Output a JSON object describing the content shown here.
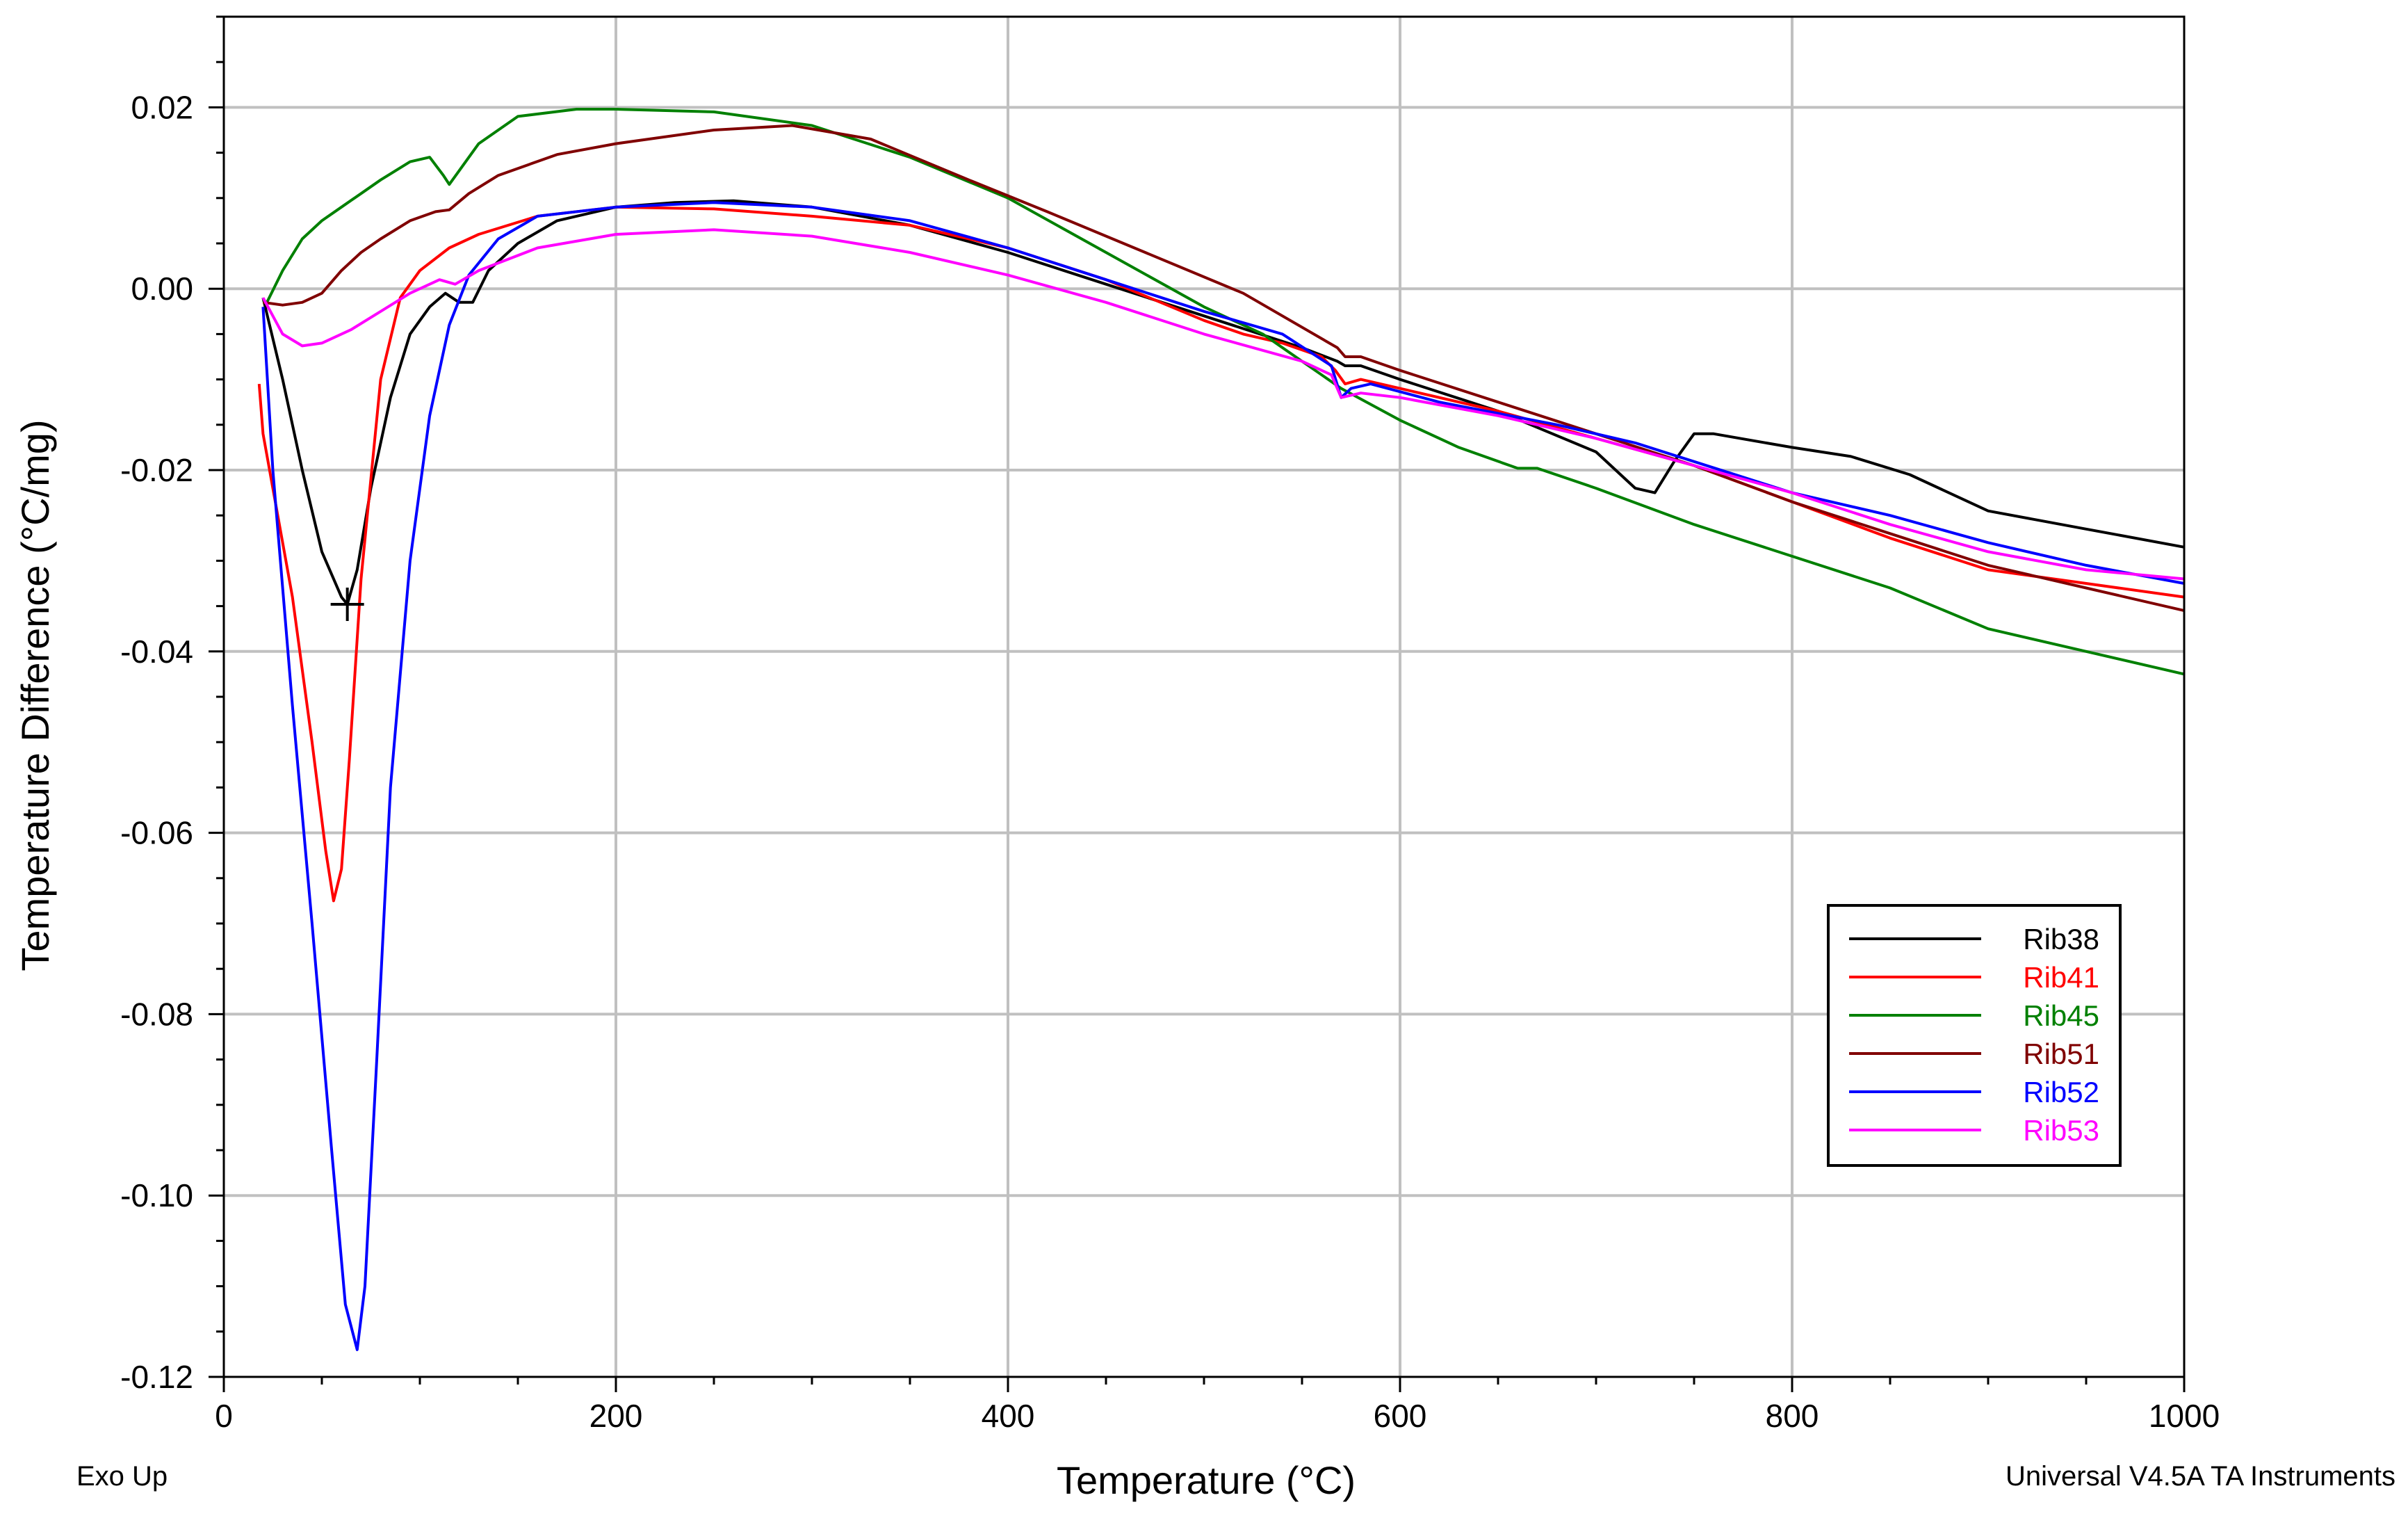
{
  "chart_data": {
    "type": "line",
    "xlabel": "Temperature (°C)",
    "ylabel": "Temperature Difference (°C/mg)",
    "xlim": [
      0,
      1000
    ],
    "ylim": [
      -0.12,
      0.03
    ],
    "x_ticks": [
      0,
      200,
      400,
      600,
      800,
      1000
    ],
    "y_ticks": [
      0.02,
      0.0,
      -0.02,
      -0.04,
      -0.06,
      -0.08,
      -0.1,
      -0.12
    ],
    "x_tick_labels": [
      "0",
      "200",
      "400",
      "600",
      "800",
      "1000"
    ],
    "y_tick_labels": [
      "0.02",
      "0.00",
      "-0.02",
      "-0.04",
      "-0.06",
      "-0.08",
      "-0.10",
      "-0.12"
    ],
    "grid": true,
    "legend_position": "bottom-right",
    "footer_left": "Exo Up",
    "footer_right": "Universal V4.5A TA Instruments",
    "marker": {
      "x": 63,
      "y": -0.0348
    },
    "series": [
      {
        "name": "Rib38",
        "color": "#000000",
        "points": [
          [
            20,
            -0.001
          ],
          [
            30,
            -0.01
          ],
          [
            40,
            -0.02
          ],
          [
            50,
            -0.029
          ],
          [
            60,
            -0.034
          ],
          [
            63,
            -0.0348
          ],
          [
            68,
            -0.031
          ],
          [
            75,
            -0.022
          ],
          [
            85,
            -0.012
          ],
          [
            95,
            -0.005
          ],
          [
            105,
            -0.002
          ],
          [
            113,
            -0.0005
          ],
          [
            120,
            -0.0015
          ],
          [
            127,
            -0.0015
          ],
          [
            135,
            0.002
          ],
          [
            150,
            0.005
          ],
          [
            170,
            0.0075
          ],
          [
            200,
            0.009
          ],
          [
            230,
            0.0095
          ],
          [
            260,
            0.0097
          ],
          [
            300,
            0.009
          ],
          [
            350,
            0.007
          ],
          [
            400,
            0.004
          ],
          [
            450,
            0.0005
          ],
          [
            500,
            -0.003
          ],
          [
            550,
            -0.0065
          ],
          [
            568,
            -0.008
          ],
          [
            572,
            -0.0085
          ],
          [
            580,
            -0.0085
          ],
          [
            600,
            -0.01
          ],
          [
            650,
            -0.0135
          ],
          [
            700,
            -0.018
          ],
          [
            720,
            -0.022
          ],
          [
            730,
            -0.0225
          ],
          [
            740,
            -0.019
          ],
          [
            750,
            -0.016
          ],
          [
            760,
            -0.016
          ],
          [
            800,
            -0.0175
          ],
          [
            830,
            -0.0185
          ],
          [
            860,
            -0.0205
          ],
          [
            900,
            -0.0245
          ],
          [
            950,
            -0.0265
          ],
          [
            1000,
            -0.0285
          ]
        ]
      },
      {
        "name": "Rib41",
        "color": "#ff0000",
        "points": [
          [
            18,
            -0.0105
          ],
          [
            20,
            -0.016
          ],
          [
            25,
            -0.022
          ],
          [
            35,
            -0.034
          ],
          [
            45,
            -0.05
          ],
          [
            52,
            -0.062
          ],
          [
            56,
            -0.0675
          ],
          [
            60,
            -0.064
          ],
          [
            64,
            -0.052
          ],
          [
            70,
            -0.032
          ],
          [
            80,
            -0.01
          ],
          [
            90,
            -0.001
          ],
          [
            100,
            0.002
          ],
          [
            115,
            0.0045
          ],
          [
            130,
            0.006
          ],
          [
            160,
            0.008
          ],
          [
            200,
            0.009
          ],
          [
            250,
            0.0088
          ],
          [
            300,
            0.008
          ],
          [
            350,
            0.007
          ],
          [
            400,
            0.0045
          ],
          [
            450,
            0.001
          ],
          [
            500,
            -0.0035
          ],
          [
            520,
            -0.005
          ],
          [
            540,
            -0.006
          ],
          [
            560,
            -0.0075
          ],
          [
            567,
            -0.009
          ],
          [
            572,
            -0.0105
          ],
          [
            580,
            -0.01
          ],
          [
            600,
            -0.011
          ],
          [
            650,
            -0.0135
          ],
          [
            700,
            -0.0165
          ],
          [
            750,
            -0.0195
          ],
          [
            800,
            -0.0235
          ],
          [
            850,
            -0.0275
          ],
          [
            900,
            -0.031
          ],
          [
            950,
            -0.0325
          ],
          [
            1000,
            -0.034
          ]
        ]
      },
      {
        "name": "Rib45",
        "color": "#008000",
        "points": [
          [
            22,
            -0.0015
          ],
          [
            30,
            0.002
          ],
          [
            40,
            0.0055
          ],
          [
            50,
            0.0075
          ],
          [
            60,
            0.009
          ],
          [
            70,
            0.0105
          ],
          [
            80,
            0.012
          ],
          [
            95,
            0.014
          ],
          [
            105,
            0.0145
          ],
          [
            112,
            0.0125
          ],
          [
            115,
            0.0115
          ],
          [
            120,
            0.013
          ],
          [
            130,
            0.016
          ],
          [
            150,
            0.019
          ],
          [
            180,
            0.0198
          ],
          [
            200,
            0.0198
          ],
          [
            250,
            0.0195
          ],
          [
            300,
            0.018
          ],
          [
            350,
            0.0145
          ],
          [
            400,
            0.01
          ],
          [
            450,
            0.004
          ],
          [
            500,
            -0.002
          ],
          [
            530,
            -0.005
          ],
          [
            550,
            -0.008
          ],
          [
            570,
            -0.011
          ],
          [
            600,
            -0.0145
          ],
          [
            630,
            -0.0175
          ],
          [
            660,
            -0.0198
          ],
          [
            670,
            -0.0198
          ],
          [
            700,
            -0.022
          ],
          [
            750,
            -0.026
          ],
          [
            800,
            -0.0295
          ],
          [
            850,
            -0.033
          ],
          [
            900,
            -0.0375
          ],
          [
            950,
            -0.04
          ],
          [
            1000,
            -0.0425
          ]
        ]
      },
      {
        "name": "Rib51",
        "color": "#800000",
        "points": [
          [
            20,
            -0.0015
          ],
          [
            30,
            -0.0018
          ],
          [
            40,
            -0.0015
          ],
          [
            50,
            -0.0005
          ],
          [
            60,
            0.002
          ],
          [
            70,
            0.004
          ],
          [
            80,
            0.0055
          ],
          [
            95,
            0.0075
          ],
          [
            108,
            0.0085
          ],
          [
            115,
            0.0087
          ],
          [
            125,
            0.0105
          ],
          [
            140,
            0.0125
          ],
          [
            170,
            0.0148
          ],
          [
            200,
            0.016
          ],
          [
            250,
            0.0175
          ],
          [
            290,
            0.018
          ],
          [
            330,
            0.0165
          ],
          [
            380,
            0.012
          ],
          [
            420,
            0.0085
          ],
          [
            470,
            0.004
          ],
          [
            520,
            -0.0005
          ],
          [
            568,
            -0.0065
          ],
          [
            572,
            -0.0075
          ],
          [
            580,
            -0.0075
          ],
          [
            600,
            -0.009
          ],
          [
            650,
            -0.0125
          ],
          [
            700,
            -0.016
          ],
          [
            750,
            -0.0195
          ],
          [
            800,
            -0.0235
          ],
          [
            850,
            -0.027
          ],
          [
            900,
            -0.0305
          ],
          [
            950,
            -0.033
          ],
          [
            1000,
            -0.0355
          ]
        ]
      },
      {
        "name": "Rib52",
        "color": "#0000ff",
        "points": [
          [
            20,
            -0.002
          ],
          [
            25,
            -0.02
          ],
          [
            35,
            -0.046
          ],
          [
            45,
            -0.07
          ],
          [
            55,
            -0.095
          ],
          [
            62,
            -0.112
          ],
          [
            68,
            -0.117
          ],
          [
            72,
            -0.11
          ],
          [
            78,
            -0.085
          ],
          [
            85,
            -0.055
          ],
          [
            95,
            -0.03
          ],
          [
            105,
            -0.014
          ],
          [
            115,
            -0.004
          ],
          [
            125,
            0.0015
          ],
          [
            140,
            0.0055
          ],
          [
            160,
            0.008
          ],
          [
            200,
            0.009
          ],
          [
            250,
            0.0095
          ],
          [
            300,
            0.009
          ],
          [
            350,
            0.0075
          ],
          [
            400,
            0.0045
          ],
          [
            450,
            0.001
          ],
          [
            500,
            -0.0025
          ],
          [
            540,
            -0.005
          ],
          [
            565,
            -0.0085
          ],
          [
            570,
            -0.012
          ],
          [
            575,
            -0.011
          ],
          [
            585,
            -0.0105
          ],
          [
            620,
            -0.0125
          ],
          [
            680,
            -0.015
          ],
          [
            720,
            -0.017
          ],
          [
            800,
            -0.0225
          ],
          [
            850,
            -0.025
          ],
          [
            900,
            -0.028
          ],
          [
            950,
            -0.0305
          ],
          [
            1000,
            -0.0325
          ]
        ]
      },
      {
        "name": "Rib53",
        "color": "#ff00ff",
        "points": [
          [
            20,
            -0.001
          ],
          [
            30,
            -0.005
          ],
          [
            40,
            -0.0063
          ],
          [
            50,
            -0.006
          ],
          [
            65,
            -0.0045
          ],
          [
            80,
            -0.0025
          ],
          [
            95,
            -0.0005
          ],
          [
            110,
            0.001
          ],
          [
            118,
            0.0005
          ],
          [
            130,
            0.002
          ],
          [
            160,
            0.0045
          ],
          [
            200,
            0.006
          ],
          [
            250,
            0.0065
          ],
          [
            300,
            0.0058
          ],
          [
            350,
            0.004
          ],
          [
            400,
            0.0015
          ],
          [
            450,
            -0.0015
          ],
          [
            500,
            -0.005
          ],
          [
            550,
            -0.008
          ],
          [
            565,
            -0.0095
          ],
          [
            570,
            -0.012
          ],
          [
            580,
            -0.0115
          ],
          [
            600,
            -0.012
          ],
          [
            650,
            -0.014
          ],
          [
            700,
            -0.0165
          ],
          [
            750,
            -0.0195
          ],
          [
            800,
            -0.0225
          ],
          [
            850,
            -0.026
          ],
          [
            900,
            -0.029
          ],
          [
            950,
            -0.031
          ],
          [
            1000,
            -0.032
          ]
        ]
      }
    ]
  }
}
